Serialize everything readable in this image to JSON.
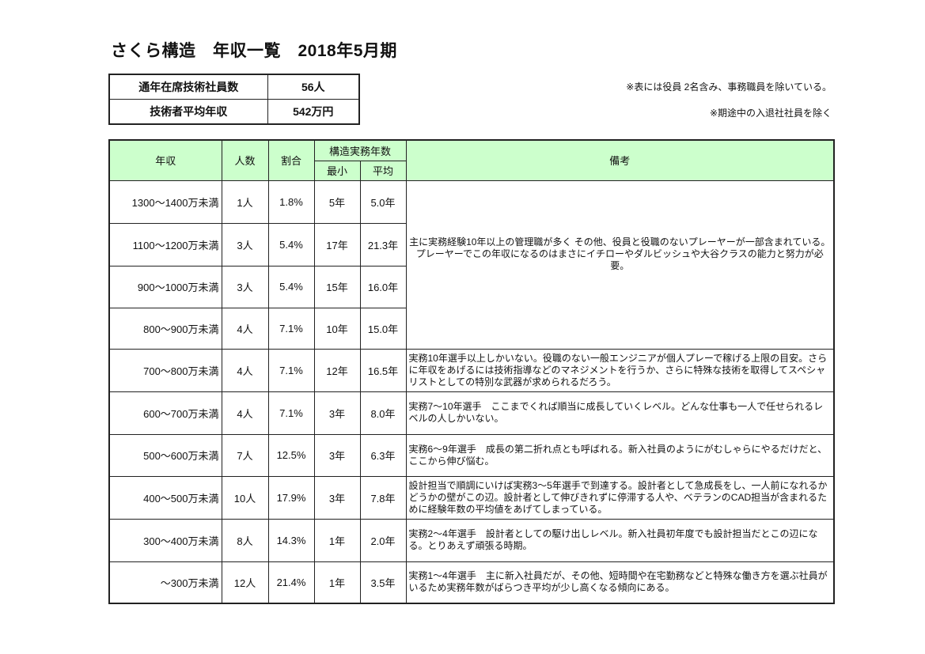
{
  "title": "さくら構造　年収一覧　2018年5月期",
  "summary": [
    {
      "label": "通年在席技術社員数",
      "value": "56人"
    },
    {
      "label": "技術者平均年収",
      "value": "542万円"
    }
  ],
  "notes": [
    "※表には役員 2名含み、事務職員を除いている。",
    "※期途中の入退社社員を除く"
  ],
  "header": {
    "income": "年収",
    "count": "人数",
    "ratio": "割合",
    "years": "構造実務年数",
    "min": "最小",
    "avg": "平均",
    "remarks": "備考"
  },
  "header_color": "#ccffcc",
  "rows": [
    {
      "income": "1300～1400万未満",
      "count": "1人",
      "ratio": "1.8%",
      "min": "5年",
      "avg": "5.0年"
    },
    {
      "income": "1100～1200万未満",
      "count": "3人",
      "ratio": "5.4%",
      "min": "17年",
      "avg": "21.3年"
    },
    {
      "income": "900～1000万未満",
      "count": "3人",
      "ratio": "5.4%",
      "min": "15年",
      "avg": "16.0年"
    },
    {
      "income": "800～900万未満",
      "count": "4人",
      "ratio": "7.1%",
      "min": "10年",
      "avg": "15.0年"
    },
    {
      "income": "700～800万未満",
      "count": "4人",
      "ratio": "7.1%",
      "min": "12年",
      "avg": "16.5年"
    },
    {
      "income": "600～700万未満",
      "count": "4人",
      "ratio": "7.1%",
      "min": "3年",
      "avg": "8.0年"
    },
    {
      "income": "500～600万未満",
      "count": "7人",
      "ratio": "12.5%",
      "min": "3年",
      "avg": "6.3年"
    },
    {
      "income": "400～500万未満",
      "count": "10人",
      "ratio": "17.9%",
      "min": "3年",
      "avg": "7.8年"
    },
    {
      "income": "300～400万未満",
      "count": "8人",
      "ratio": "14.3%",
      "min": "1年",
      "avg": "2.0年"
    },
    {
      "income": "～300万未満",
      "count": "12人",
      "ratio": "21.4%",
      "min": "1年",
      "avg": "3.5年"
    }
  ],
  "remarks": [
    "主に実務経験10年以上の管理職が多く その他、役員と役職のないプレーヤーが一部含まれている。プレーヤーでこの年収になるのはまさにイチローやダルビッシュや大谷クラスの能力と努力が必要。",
    "実務10年選手以上しかいない。役職のない一般エンジニアが個人プレーで稼げる上限の目安。さらに年収をあげるには技術指導などのマネジメントを行うか、さらに特殊な技術を取得してスペシャリストとしての特別な武器が求められるだろう。",
    "実務7～10年選手　ここまでくれば順当に成長していくレベル。どんな仕事も一人で任せられるレベルの人しかいない。",
    "実務6～9年選手　成長の第二折れ点とも呼ばれる。新入社員のようにがむしゃらにやるだけだと、ここから伸び悩む。",
    "設計担当で順調にいけば実務3～5年選手で到達する。設計者として急成長をし、一人前になれるかどうかの壁がこの辺。設計者として伸びきれずに停滞する人や、ベテランのCAD担当が含まれるために経験年数の平均値をあげてしまっている。",
    "実務2～4年選手　設計者としての駆け出しレベル。新入社員初年度でも設計担当だとこの辺になる。とりあえず頑張る時期。",
    "実務1～4年選手　主に新入社員だが、その他、短時間や在宅勤務などと特殊な働き方を選ぶ社員がいるため実務年数がばらつき平均が少し高くなる傾向にある。"
  ]
}
